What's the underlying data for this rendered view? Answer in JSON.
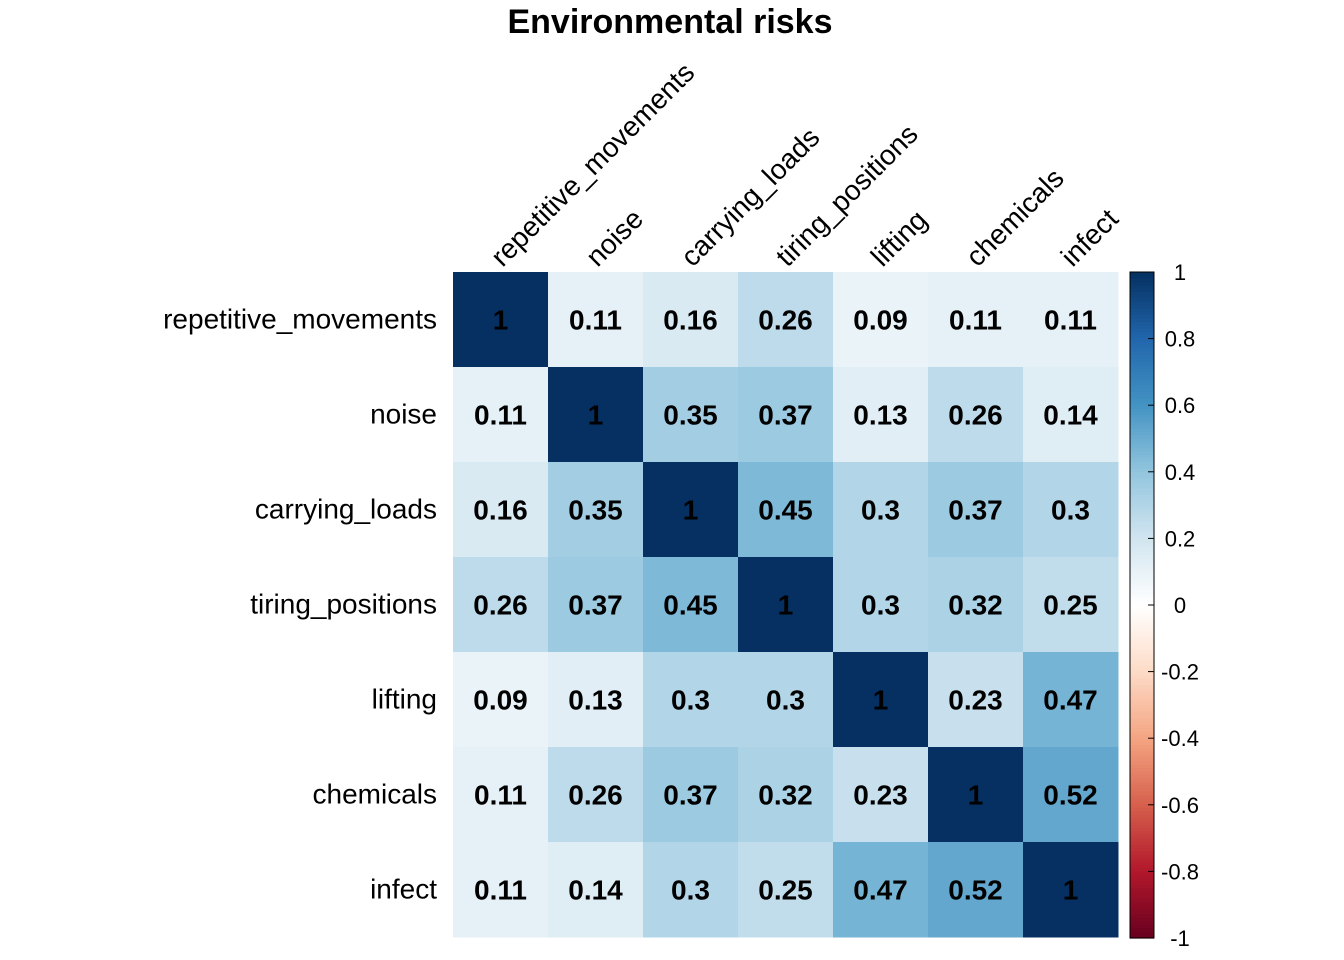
{
  "chart_data": {
    "type": "heatmap",
    "title": "Environmental risks",
    "variables": [
      "repetitive_movements",
      "noise",
      "carrying_loads",
      "tiring_positions",
      "lifting",
      "chemicals",
      "infect"
    ],
    "matrix": [
      [
        "1",
        "0.11",
        "0.16",
        "0.26",
        "0.09",
        "0.11",
        "0.11"
      ],
      [
        "0.11",
        "1",
        "0.35",
        "0.37",
        "0.13",
        "0.26",
        "0.14"
      ],
      [
        "0.16",
        "0.35",
        "1",
        "0.45",
        "0.3",
        "0.37",
        "0.3"
      ],
      [
        "0.26",
        "0.37",
        "0.45",
        "1",
        "0.3",
        "0.32",
        "0.25"
      ],
      [
        "0.09",
        "0.13",
        "0.3",
        "0.3",
        "1",
        "0.23",
        "0.47"
      ],
      [
        "0.11",
        "0.26",
        "0.37",
        "0.32",
        "0.23",
        "1",
        "0.52"
      ],
      [
        "0.11",
        "0.14",
        "0.3",
        "0.25",
        "0.47",
        "0.52",
        "1"
      ]
    ],
    "colorbar": {
      "range": [
        -1,
        1
      ],
      "ticks": [
        "1",
        "0.8",
        "0.6",
        "0.4",
        "0.2",
        "0",
        "-0.2",
        "-0.4",
        "-0.6",
        "-0.8",
        "-1"
      ],
      "colors": [
        "#67001f",
        "#b2182b",
        "#d6604d",
        "#f4a582",
        "#fddbc7",
        "#ffffff",
        "#d1e5f0",
        "#92c5de",
        "#4393c3",
        "#2166ac",
        "#053061"
      ]
    }
  }
}
